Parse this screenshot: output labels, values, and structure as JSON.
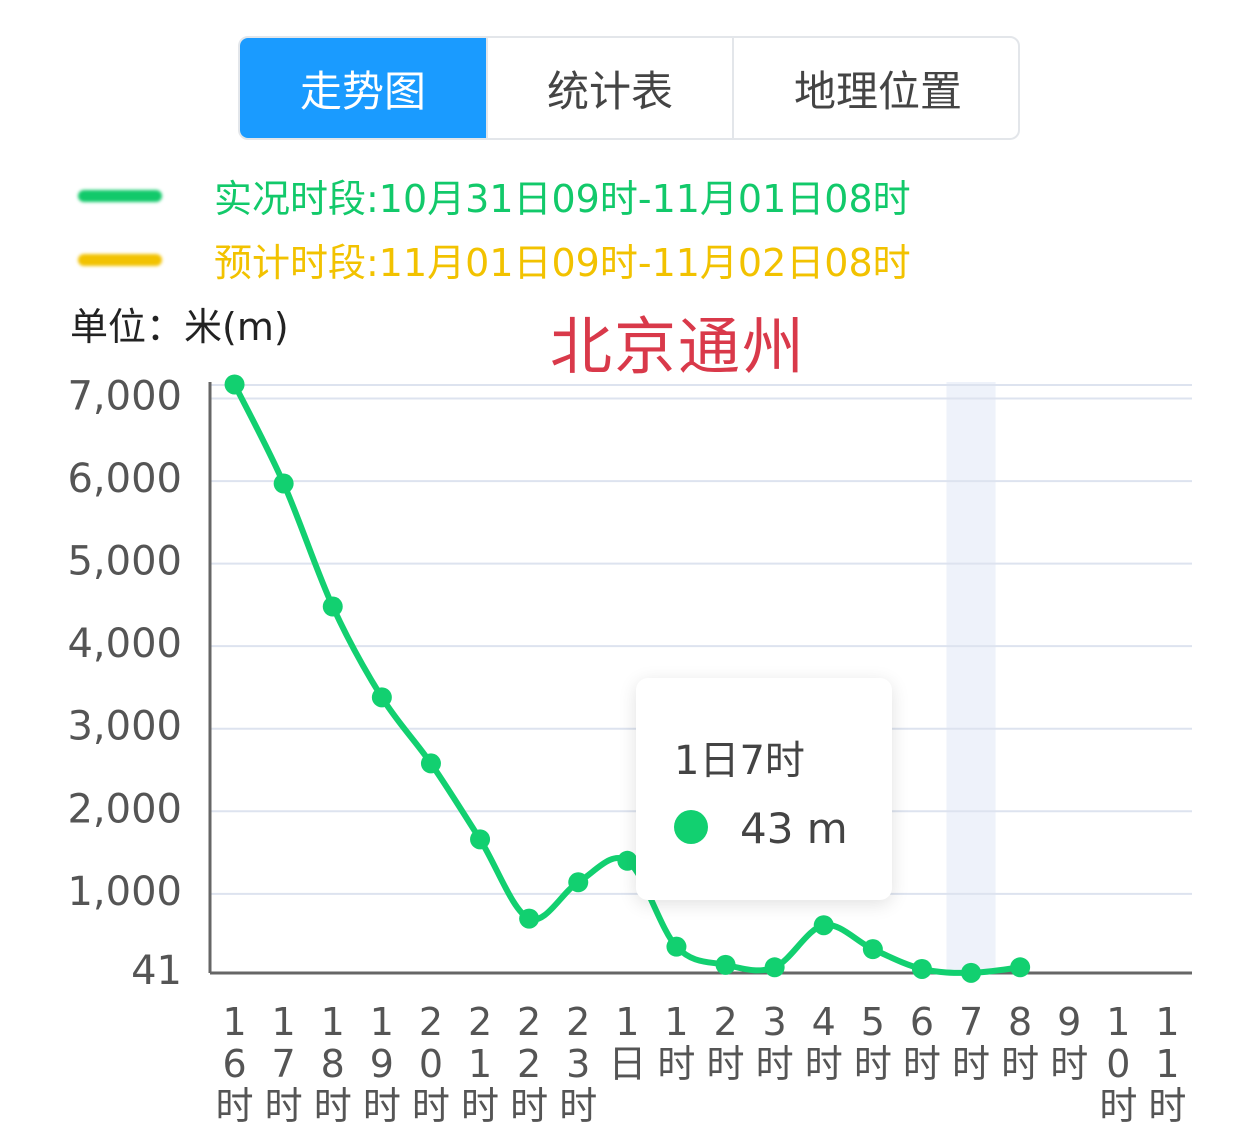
{
  "tabs": [
    "走势图",
    "统计表",
    "地理位置"
  ],
  "legend": [
    {
      "text": "实况时段:10月31日09时-11月01日08时",
      "color": "#12c96a"
    },
    {
      "text": "预计时段:11月01日09时-11月02日08时",
      "color": "#f2c200"
    }
  ],
  "unit_label": "单位：米(m)",
  "tooltip": {
    "title": "1日7时",
    "value": "43 m"
  },
  "chart_data": {
    "type": "line",
    "title": "北京通州",
    "categories": [
      "16时",
      "17时",
      "18时",
      "19时",
      "20时",
      "21时",
      "22时",
      "23时",
      "1日",
      "1时",
      "2时",
      "3时",
      "4时",
      "5时",
      "6时",
      "7时",
      "8时",
      "9时",
      "10时",
      "11时"
    ],
    "series": [
      {
        "name": "实况时段",
        "color": "#12d070",
        "values": [
          7170,
          5970,
          4480,
          3380,
          2580,
          1660,
          700,
          1140,
          1400,
          360,
          140,
          110,
          620,
          330,
          90,
          43,
          110,
          null,
          null,
          null
        ]
      }
    ],
    "ylim": [
      41,
      7200
    ],
    "yticks": [
      41,
      {
        "value": 1000,
        "label": "1,000"
      },
      {
        "value": 2000,
        "label": "2,000"
      },
      {
        "value": 3000,
        "label": "3,000"
      },
      {
        "value": 4000,
        "label": "4,000"
      },
      {
        "value": 5000,
        "label": "5,000"
      },
      {
        "value": 6000,
        "label": "6,000"
      },
      {
        "value": 7000,
        "label": "7,000"
      }
    ],
    "grid": true,
    "highlight_category": 15
  }
}
